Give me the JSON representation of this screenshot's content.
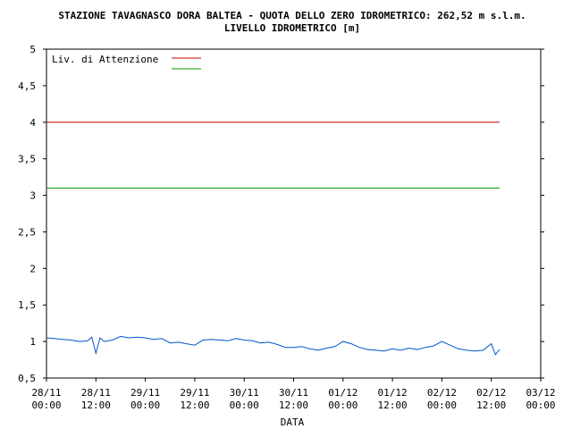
{
  "chart_data": {
    "type": "line",
    "title": "STAZIONE TAVAGNASCO DORA BALTEA - QUOTA DELLO ZERO IDROMETRICO: 262,52 m s.l.m.",
    "subtitle": "LIVELLO IDROMETRICO [m]",
    "xlabel": "DATA",
    "ylabel": "",
    "ylim": [
      0.5,
      5
    ],
    "yticks": [
      "0,5",
      "1",
      "1,5",
      "2",
      "2,5",
      "3",
      "3,5",
      "4",
      "4,5",
      "5"
    ],
    "ytick_values": [
      0.5,
      1,
      1.5,
      2,
      2.5,
      3,
      3.5,
      4,
      4.5,
      5
    ],
    "xlim": [
      "2008-11-28T00:00",
      "2008-12-03T00:00"
    ],
    "xticks": [
      {
        "date": "28/11",
        "time": "00:00",
        "t": "2008-11-28T00:00"
      },
      {
        "date": "28/11",
        "time": "12:00",
        "t": "2008-11-28T12:00"
      },
      {
        "date": "29/11",
        "time": "00:00",
        "t": "2008-11-29T00:00"
      },
      {
        "date": "29/11",
        "time": "12:00",
        "t": "2008-11-29T12:00"
      },
      {
        "date": "30/11",
        "time": "00:00",
        "t": "2008-11-30T00:00"
      },
      {
        "date": "30/11",
        "time": "12:00",
        "t": "2008-11-30T12:00"
      },
      {
        "date": "01/12",
        "time": "00:00",
        "t": "2008-12-01T00:00"
      },
      {
        "date": "01/12",
        "time": "12:00",
        "t": "2008-12-01T12:00"
      },
      {
        "date": "02/12",
        "time": "00:00",
        "t": "2008-12-02T00:00"
      },
      {
        "date": "02/12",
        "time": "12:00",
        "t": "2008-12-02T12:00"
      },
      {
        "date": "03/12",
        "time": "00:00",
        "t": "2008-12-03T00:00"
      }
    ],
    "grid": false,
    "legend_position": "top-left",
    "series": [
      {
        "name": "Liv. di Attenzione",
        "color": "#cc0000",
        "x": [
          "2008-11-28T00:00",
          "2008-12-02T14:00"
        ],
        "values": [
          4.0,
          4.0
        ]
      },
      {
        "name": "",
        "color": "#009900",
        "x": [
          "2008-11-28T00:00",
          "2008-12-02T14:00"
        ],
        "values": [
          3.1,
          3.1
        ]
      },
      {
        "name": "",
        "color": "#0055cc",
        "x": [
          "2008-11-28T00:00",
          "2008-11-28T02:00",
          "2008-11-28T04:00",
          "2008-11-28T06:00",
          "2008-11-28T08:00",
          "2008-11-28T10:00",
          "2008-11-28T11:00",
          "2008-11-28T12:00",
          "2008-11-28T13:00",
          "2008-11-28T14:00",
          "2008-11-28T16:00",
          "2008-11-28T18:00",
          "2008-11-28T20:00",
          "2008-11-28T22:00",
          "2008-11-29T00:00",
          "2008-11-29T02:00",
          "2008-11-29T04:00",
          "2008-11-29T06:00",
          "2008-11-29T08:00",
          "2008-11-29T10:00",
          "2008-11-29T12:00",
          "2008-11-29T14:00",
          "2008-11-29T16:00",
          "2008-11-29T18:00",
          "2008-11-29T20:00",
          "2008-11-29T22:00",
          "2008-11-30T00:00",
          "2008-11-30T02:00",
          "2008-11-30T04:00",
          "2008-11-30T06:00",
          "2008-11-30T08:00",
          "2008-11-30T10:00",
          "2008-11-30T12:00",
          "2008-11-30T14:00",
          "2008-11-30T16:00",
          "2008-11-30T18:00",
          "2008-11-30T20:00",
          "2008-11-30T22:00",
          "2008-12-01T00:00",
          "2008-12-01T02:00",
          "2008-12-01T04:00",
          "2008-12-01T06:00",
          "2008-12-01T08:00",
          "2008-12-01T10:00",
          "2008-12-01T12:00",
          "2008-12-01T14:00",
          "2008-12-01T16:00",
          "2008-12-01T18:00",
          "2008-12-01T20:00",
          "2008-12-01T22:00",
          "2008-12-02T00:00",
          "2008-12-02T02:00",
          "2008-12-02T04:00",
          "2008-12-02T06:00",
          "2008-12-02T08:00",
          "2008-12-02T10:00",
          "2008-12-02T12:00",
          "2008-12-02T13:00",
          "2008-12-02T14:00"
        ],
        "values": [
          1.05,
          1.04,
          1.03,
          1.02,
          1.0,
          1.01,
          1.06,
          0.84,
          1.05,
          1.0,
          1.02,
          1.07,
          1.05,
          1.06,
          1.05,
          1.03,
          1.04,
          0.98,
          0.99,
          0.97,
          0.95,
          1.02,
          1.03,
          1.02,
          1.01,
          1.04,
          1.02,
          1.01,
          0.98,
          0.99,
          0.96,
          0.92,
          0.92,
          0.93,
          0.9,
          0.88,
          0.91,
          0.93,
          1.0,
          0.97,
          0.92,
          0.89,
          0.88,
          0.87,
          0.9,
          0.88,
          0.91,
          0.89,
          0.92,
          0.94,
          1.0,
          0.95,
          0.9,
          0.88,
          0.87,
          0.88,
          0.97,
          0.82,
          0.89
        ]
      }
    ]
  }
}
